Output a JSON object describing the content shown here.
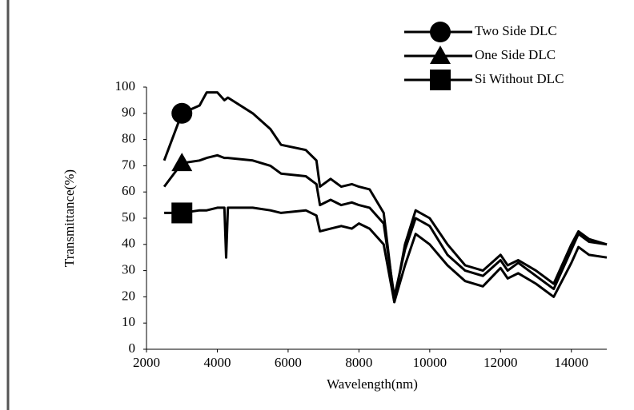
{
  "chart_data": {
    "type": "line",
    "x_label": "Wavelength(nm)",
    "y_label": "Transmittance(%)",
    "x": [
      2500,
      3000,
      3500,
      3700,
      4000,
      4200,
      4250,
      4300,
      5000,
      5500,
      5800,
      6500,
      6800,
      6900,
      7200,
      7500,
      7800,
      8000,
      8300,
      8700,
      9000,
      9300,
      9600,
      10000,
      10500,
      11000,
      11500,
      12000,
      12200,
      12500,
      13000,
      13500,
      14000,
      14200,
      14500,
      15000
    ],
    "series": [
      {
        "name": "Two Side DLC",
        "color": "#000000",
        "marker": "circle",
        "values": [
          72,
          90,
          93,
          98,
          98,
          95,
          95.5,
          96,
          90,
          84,
          78,
          76,
          72,
          62,
          65,
          62,
          63,
          62,
          61,
          52,
          18,
          40,
          53,
          50,
          40,
          32,
          30,
          36,
          32,
          34,
          30,
          25,
          40,
          45,
          42,
          40
        ]
      },
      {
        "name": "One Side DLC",
        "color": "#000000",
        "marker": "triangle",
        "values": [
          62,
          71,
          72,
          73,
          74,
          73,
          73,
          73,
          72,
          70,
          67,
          66,
          63,
          55,
          57,
          55,
          56,
          55,
          54,
          48,
          20,
          38,
          50,
          47,
          36,
          30,
          28,
          34,
          30,
          33,
          28,
          23,
          38,
          44,
          41,
          40
        ]
      },
      {
        "name": "Si Without DLC",
        "color": "#000000",
        "marker": "square",
        "values": [
          52,
          52,
          53,
          53,
          54,
          54,
          35,
          54,
          54,
          53,
          52,
          53,
          51,
          45,
          46,
          47,
          46,
          48,
          46,
          40,
          18,
          32,
          44,
          40,
          32,
          26,
          24,
          31,
          27,
          29,
          25,
          20,
          33,
          39,
          36,
          35
        ]
      }
    ],
    "xlim": [
      2000,
      15000
    ],
    "xticks": [
      2000,
      4000,
      6000,
      8000,
      10000,
      12000,
      14000
    ],
    "ylim": [
      0,
      100
    ],
    "yticks": [
      0,
      10,
      20,
      30,
      40,
      50,
      60,
      70,
      80,
      90,
      100
    ],
    "grid": false,
    "legend": "top-right"
  }
}
